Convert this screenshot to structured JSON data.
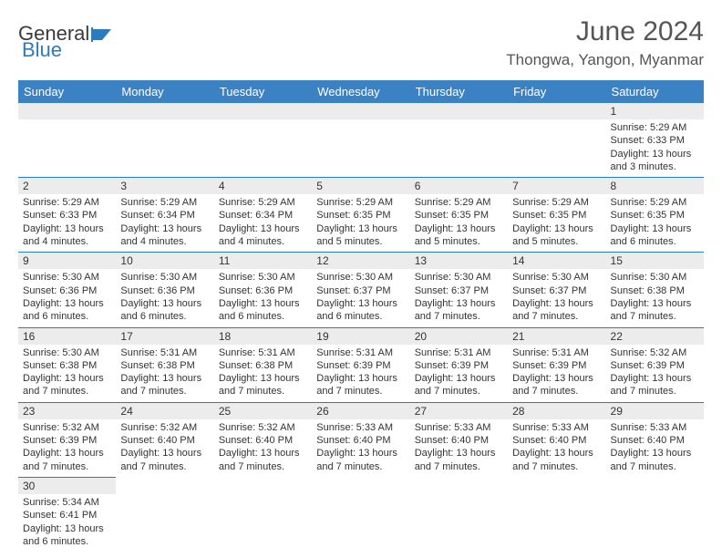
{
  "logo": {
    "text1": "General",
    "text2": "Blue"
  },
  "title": "June 2024",
  "location": "Thongwa, Yangon, Myanmar",
  "colors": {
    "header_bg": "#3b82c4",
    "header_text": "#ffffff",
    "border": "#2b7bbf",
    "daynum_bg": "#ececec",
    "logo_blue": "#2b7bbf"
  },
  "weekdays": [
    "Sunday",
    "Monday",
    "Tuesday",
    "Wednesday",
    "Thursday",
    "Friday",
    "Saturday"
  ],
  "weeks": [
    [
      null,
      null,
      null,
      null,
      null,
      null,
      {
        "n": "1",
        "sunrise": "5:29 AM",
        "sunset": "6:33 PM",
        "daylight": "13 hours and 3 minutes."
      }
    ],
    [
      {
        "n": "2",
        "sunrise": "5:29 AM",
        "sunset": "6:33 PM",
        "daylight": "13 hours and 4 minutes."
      },
      {
        "n": "3",
        "sunrise": "5:29 AM",
        "sunset": "6:34 PM",
        "daylight": "13 hours and 4 minutes."
      },
      {
        "n": "4",
        "sunrise": "5:29 AM",
        "sunset": "6:34 PM",
        "daylight": "13 hours and 4 minutes."
      },
      {
        "n": "5",
        "sunrise": "5:29 AM",
        "sunset": "6:35 PM",
        "daylight": "13 hours and 5 minutes."
      },
      {
        "n": "6",
        "sunrise": "5:29 AM",
        "sunset": "6:35 PM",
        "daylight": "13 hours and 5 minutes."
      },
      {
        "n": "7",
        "sunrise": "5:29 AM",
        "sunset": "6:35 PM",
        "daylight": "13 hours and 5 minutes."
      },
      {
        "n": "8",
        "sunrise": "5:29 AM",
        "sunset": "6:35 PM",
        "daylight": "13 hours and 6 minutes."
      }
    ],
    [
      {
        "n": "9",
        "sunrise": "5:30 AM",
        "sunset": "6:36 PM",
        "daylight": "13 hours and 6 minutes."
      },
      {
        "n": "10",
        "sunrise": "5:30 AM",
        "sunset": "6:36 PM",
        "daylight": "13 hours and 6 minutes."
      },
      {
        "n": "11",
        "sunrise": "5:30 AM",
        "sunset": "6:36 PM",
        "daylight": "13 hours and 6 minutes."
      },
      {
        "n": "12",
        "sunrise": "5:30 AM",
        "sunset": "6:37 PM",
        "daylight": "13 hours and 6 minutes."
      },
      {
        "n": "13",
        "sunrise": "5:30 AM",
        "sunset": "6:37 PM",
        "daylight": "13 hours and 7 minutes."
      },
      {
        "n": "14",
        "sunrise": "5:30 AM",
        "sunset": "6:37 PM",
        "daylight": "13 hours and 7 minutes."
      },
      {
        "n": "15",
        "sunrise": "5:30 AM",
        "sunset": "6:38 PM",
        "daylight": "13 hours and 7 minutes."
      }
    ],
    [
      {
        "n": "16",
        "sunrise": "5:30 AM",
        "sunset": "6:38 PM",
        "daylight": "13 hours and 7 minutes."
      },
      {
        "n": "17",
        "sunrise": "5:31 AM",
        "sunset": "6:38 PM",
        "daylight": "13 hours and 7 minutes."
      },
      {
        "n": "18",
        "sunrise": "5:31 AM",
        "sunset": "6:38 PM",
        "daylight": "13 hours and 7 minutes."
      },
      {
        "n": "19",
        "sunrise": "5:31 AM",
        "sunset": "6:39 PM",
        "daylight": "13 hours and 7 minutes."
      },
      {
        "n": "20",
        "sunrise": "5:31 AM",
        "sunset": "6:39 PM",
        "daylight": "13 hours and 7 minutes."
      },
      {
        "n": "21",
        "sunrise": "5:31 AM",
        "sunset": "6:39 PM",
        "daylight": "13 hours and 7 minutes."
      },
      {
        "n": "22",
        "sunrise": "5:32 AM",
        "sunset": "6:39 PM",
        "daylight": "13 hours and 7 minutes."
      }
    ],
    [
      {
        "n": "23",
        "sunrise": "5:32 AM",
        "sunset": "6:39 PM",
        "daylight": "13 hours and 7 minutes."
      },
      {
        "n": "24",
        "sunrise": "5:32 AM",
        "sunset": "6:40 PM",
        "daylight": "13 hours and 7 minutes."
      },
      {
        "n": "25",
        "sunrise": "5:32 AM",
        "sunset": "6:40 PM",
        "daylight": "13 hours and 7 minutes."
      },
      {
        "n": "26",
        "sunrise": "5:33 AM",
        "sunset": "6:40 PM",
        "daylight": "13 hours and 7 minutes."
      },
      {
        "n": "27",
        "sunrise": "5:33 AM",
        "sunset": "6:40 PM",
        "daylight": "13 hours and 7 minutes."
      },
      {
        "n": "28",
        "sunrise": "5:33 AM",
        "sunset": "6:40 PM",
        "daylight": "13 hours and 7 minutes."
      },
      {
        "n": "29",
        "sunrise": "5:33 AM",
        "sunset": "6:40 PM",
        "daylight": "13 hours and 7 minutes."
      }
    ],
    [
      {
        "n": "30",
        "sunrise": "5:34 AM",
        "sunset": "6:41 PM",
        "daylight": "13 hours and 6 minutes."
      },
      null,
      null,
      null,
      null,
      null,
      null
    ]
  ],
  "labels": {
    "sunrise": "Sunrise:",
    "sunset": "Sunset:",
    "daylight": "Daylight:"
  }
}
